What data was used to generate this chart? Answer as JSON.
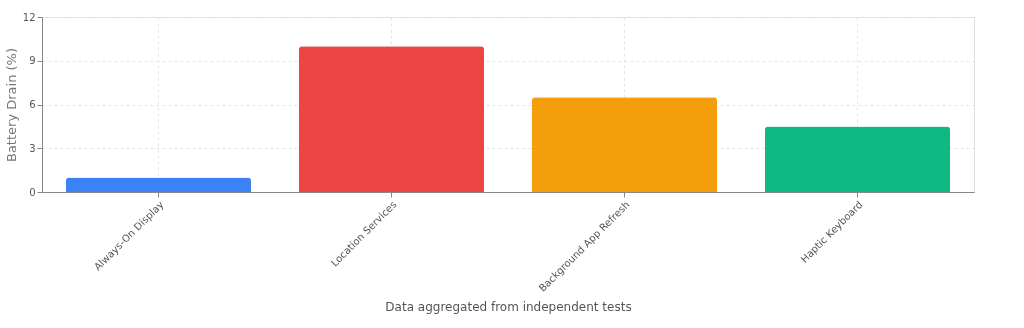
{
  "chart_data": {
    "type": "bar",
    "categories": [
      "Always-On Display",
      "Location Services",
      "Background App Refresh",
      "Haptic Keyboard"
    ],
    "values": [
      1,
      10,
      6.5,
      4.5
    ],
    "colors": [
      "#3b82f6",
      "#ef4444",
      "#f59e0b",
      "#10b981"
    ],
    "ylabel": "Battery Drain (%)",
    "xlabel": "Data aggregated from independent tests",
    "ylim": [
      0,
      12
    ],
    "yticks": [
      0,
      3,
      6,
      9,
      12
    ],
    "grid": true
  }
}
